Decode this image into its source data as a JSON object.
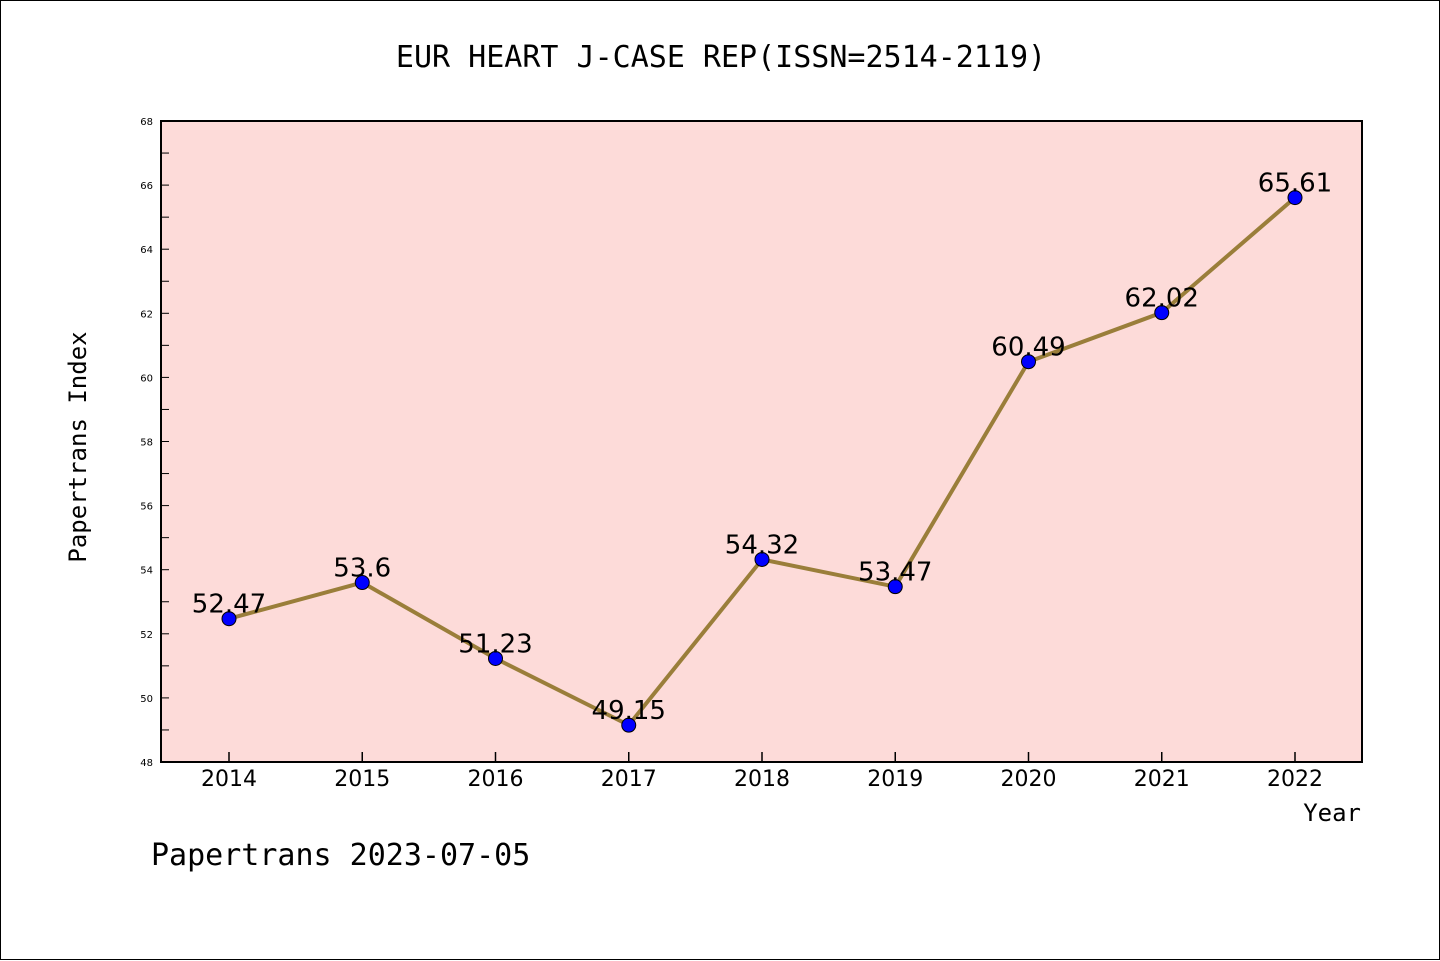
{
  "footer": "Papertrans 2023-07-05",
  "chart_data": {
    "type": "line",
    "title": "EUR HEART J-CASE REP(ISSN=2514-2119)",
    "xlabel": "Year",
    "ylabel": "Papertrans Index",
    "categories": [
      "2014",
      "2015",
      "2016",
      "2017",
      "2018",
      "2019",
      "2020",
      "2021",
      "2022"
    ],
    "values": [
      52.47,
      53.6,
      51.23,
      49.15,
      54.32,
      53.47,
      60.49,
      62.02,
      65.61
    ],
    "data_labels": [
      "52.47",
      "53.6",
      "51.23",
      "49.15",
      "54.32",
      "53.47",
      "60.49",
      "62.02",
      "65.61"
    ],
    "ylim": [
      48,
      68
    ],
    "yticks": [
      "48",
      "50",
      "52",
      "54",
      "56",
      "58",
      "60",
      "62",
      "64",
      "66",
      "68"
    ],
    "grid": false,
    "colors": {
      "plot_background": "#fddbd9",
      "line": "#9a7e3a",
      "marker": "#0000ff"
    }
  }
}
